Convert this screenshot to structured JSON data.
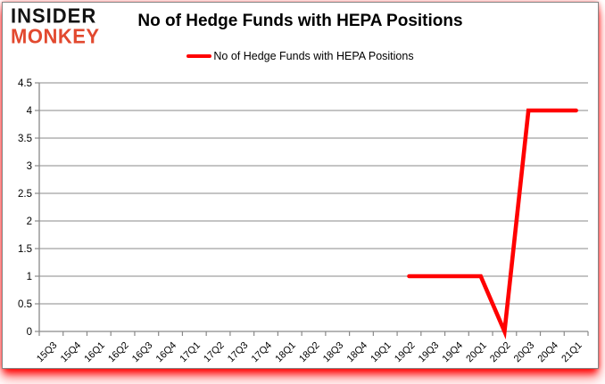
{
  "brand": {
    "line1": "INSIDER",
    "line2": "MONKEY",
    "insider_color": "#131313",
    "monkey_color": "#e2492f"
  },
  "header": {
    "title": "No of Hedge Funds with HEPA Positions"
  },
  "legend": {
    "label": "No of Hedge Funds with HEPA Positions",
    "line_color": "#ff0000"
  },
  "chart_data": {
    "type": "line",
    "title": "No of Hedge Funds with HEPA Positions",
    "categories": [
      "15Q3",
      "15Q4",
      "16Q1",
      "16Q2",
      "16Q3",
      "16Q4",
      "17Q1",
      "17Q2",
      "17Q3",
      "17Q4",
      "18Q1",
      "18Q2",
      "18Q3",
      "18Q4",
      "19Q1",
      "19Q2",
      "19Q3",
      "19Q4",
      "20Q1",
      "20Q2",
      "20Q3",
      "20Q4",
      "21Q1"
    ],
    "series": [
      {
        "name": "No of Hedge Funds with HEPA Positions",
        "color": "#ff0000",
        "values": [
          null,
          null,
          null,
          null,
          null,
          null,
          null,
          null,
          null,
          null,
          null,
          null,
          null,
          null,
          null,
          1,
          1,
          1,
          1,
          0,
          4,
          4,
          4
        ]
      }
    ],
    "xlabel": "",
    "ylabel": "",
    "ylim": [
      0,
      4.5
    ],
    "yticks": [
      "0",
      "0.5",
      "1",
      "1.5",
      "2",
      "2.5",
      "3",
      "3.5",
      "4",
      "4.5"
    ],
    "grid": "horizontal",
    "legend_position": "top",
    "gridline_color": "#898989",
    "axis_color": "#898989",
    "tick_label_color": "#000000"
  }
}
